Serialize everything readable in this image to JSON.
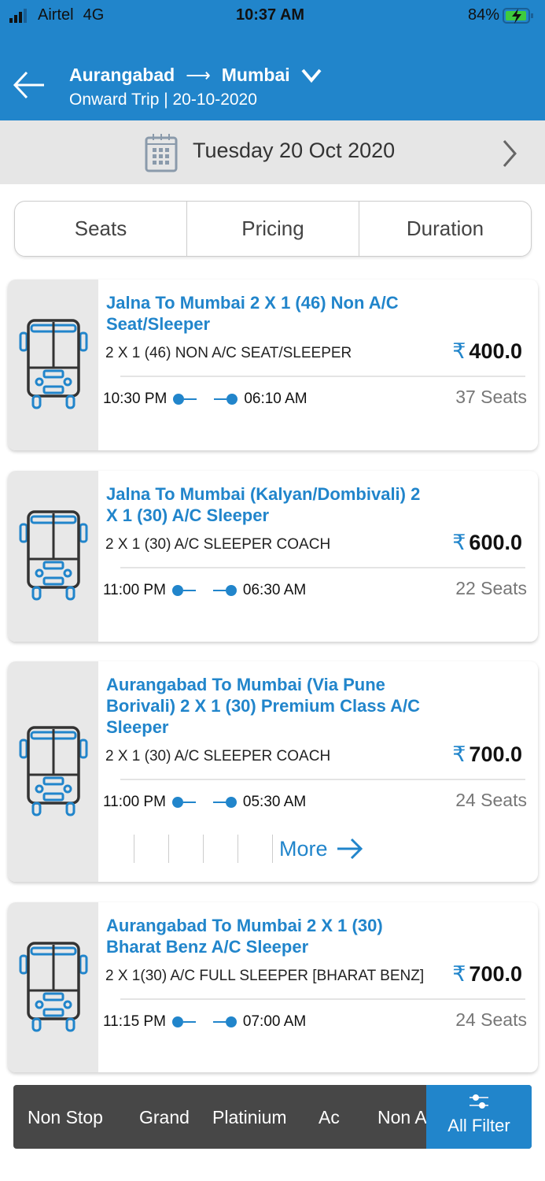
{
  "status_bar": {
    "carrier": "Airtel",
    "network": "4G",
    "time": "10:37 AM",
    "battery": "84%"
  },
  "header": {
    "from": "Aurangabad",
    "arrow": "⟶",
    "to": "Mumbai",
    "subtitle": "Onward Trip | 20-10-2020"
  },
  "date_bar": {
    "date": "Tuesday 20 Oct 2020"
  },
  "sort_tabs": [
    "Seats",
    "Pricing",
    "Duration"
  ],
  "buses": [
    {
      "title": "Jalna To Mumbai 2 X 1 (46) Non A/C Seat/Sleeper",
      "type": "2 X 1 (46) NON A/C SEAT/SLEEPER",
      "currency": "₹",
      "price": "400.0",
      "depart": "10:30 PM",
      "arrive": "06:10 AM",
      "seats": "37 Seats"
    },
    {
      "title": "Jalna To Mumbai (Kalyan/Dombivali) 2 X 1 (30) A/C Sleeper",
      "type": "2 X 1 (30) A/C SLEEPER COACH",
      "currency": "₹",
      "price": "600.0",
      "depart": "11:00 PM",
      "arrive": "06:30 AM",
      "seats": "22 Seats"
    },
    {
      "title": "Aurangabad To Mumbai (Via Pune Borivali) 2 X 1 (30) Premium Class A/C Sleeper",
      "type": "2 X 1 (30) A/C SLEEPER COACH",
      "currency": "₹",
      "price": "700.0",
      "depart": "11:00 PM",
      "arrive": "05:30 AM",
      "seats": "24 Seats",
      "more": "More"
    },
    {
      "title": "Aurangabad To Mumbai 2 X 1 (30) Bharat Benz A/C Sleeper",
      "type": "2 X 1(30) A/C FULL SLEEPER [BHARAT BENZ]",
      "currency": "₹",
      "price": "700.0",
      "depart": "11:15 PM",
      "arrive": "07:00 AM",
      "seats": "24 Seats"
    }
  ],
  "filters": [
    "Non Stop",
    "Grand",
    "Platinium",
    "Ac",
    "Non A"
  ],
  "all_filter": "All Filter",
  "colors": {
    "primary": "#2185cb",
    "filter_bar": "#474747"
  }
}
